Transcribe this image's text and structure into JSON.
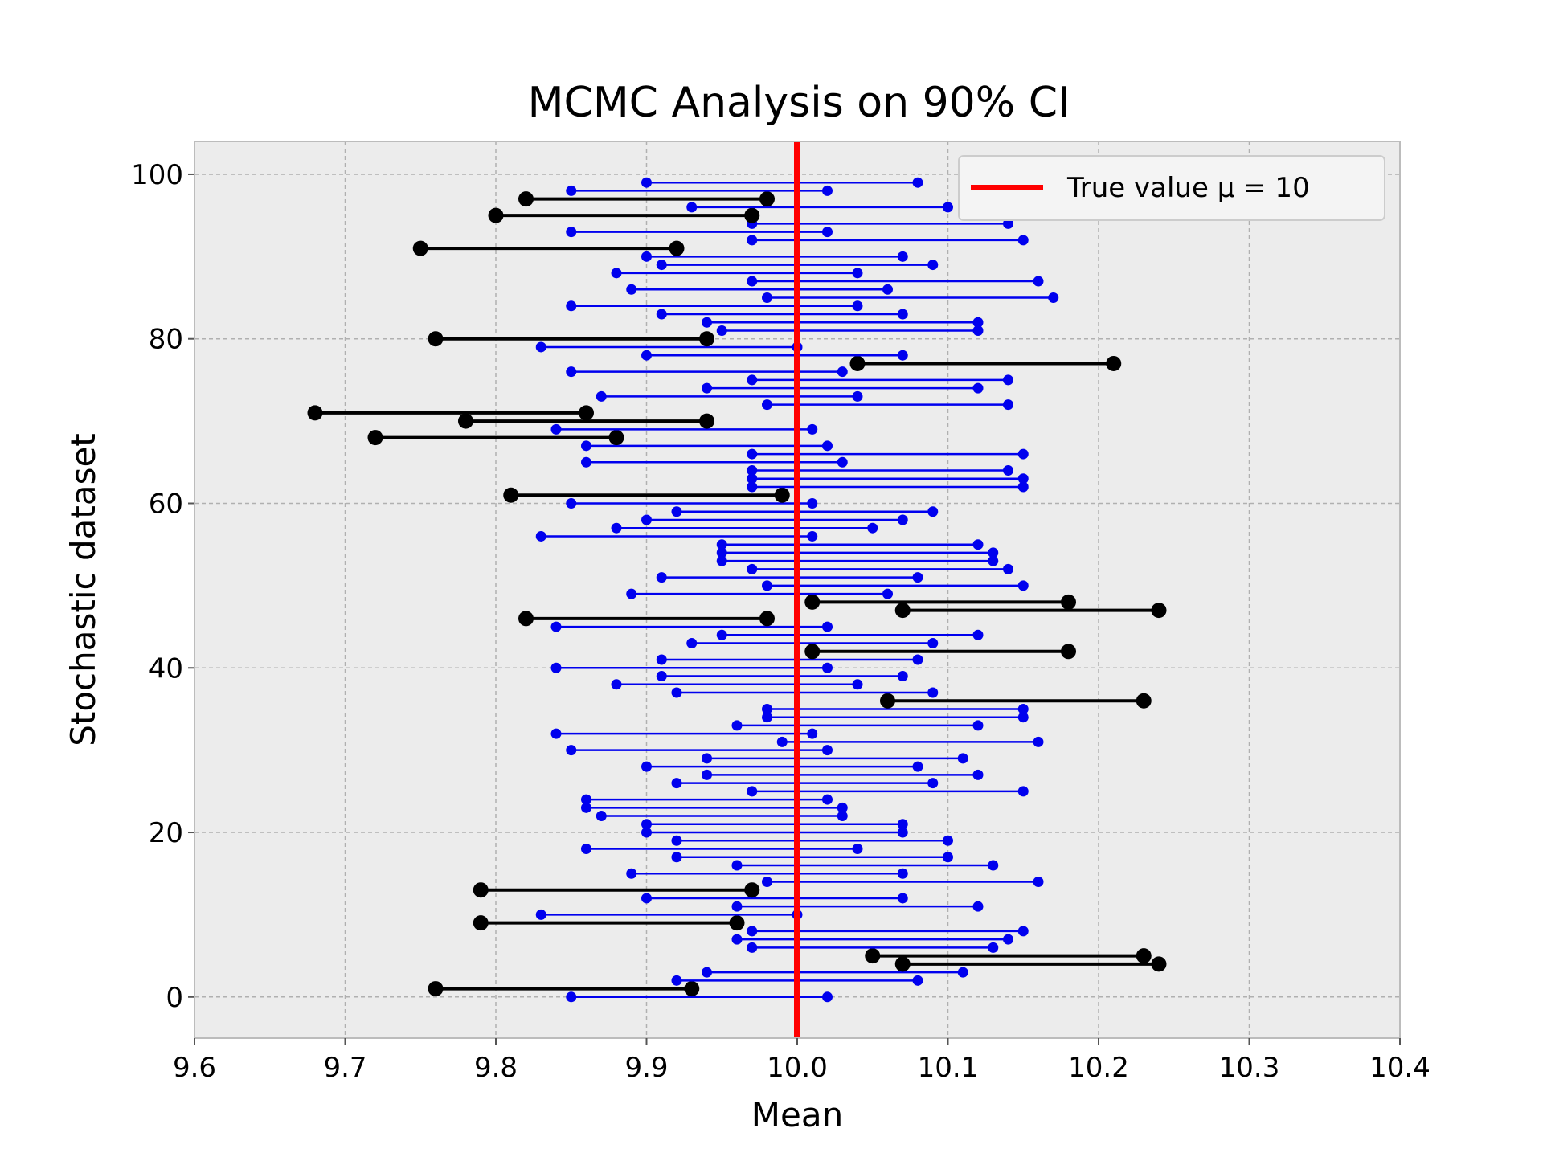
{
  "chart_data": {
    "type": "interval",
    "title": "MCMC Analysis on 90% CI",
    "xlabel": "Mean",
    "ylabel": "Stochastic dataset",
    "xlim": [
      9.6,
      10.4
    ],
    "ylim": [
      -5,
      104
    ],
    "xticks": [
      9.6,
      9.7,
      9.8,
      9.9,
      10.0,
      10.1,
      10.2,
      10.3,
      10.4
    ],
    "xtick_labels": [
      "9.6",
      "9.7",
      "9.8",
      "9.9",
      "10.0",
      "10.1",
      "10.2",
      "10.3",
      "10.4"
    ],
    "yticks": [
      0,
      20,
      40,
      60,
      80,
      100
    ],
    "ytick_labels": [
      "0",
      "20",
      "40",
      "60",
      "80",
      "100"
    ],
    "grid": true,
    "legend": {
      "placement": "top-right",
      "label": "True value μ = 10"
    },
    "true_value": 10.0,
    "colors": {
      "contains_true": "#0000ee",
      "misses_true": "#000000",
      "true_line": "#ff0000",
      "plot_bg": "#ececec",
      "grid": "#b0b0b0",
      "spine": "#bcbcbc"
    },
    "intervals": [
      [
        9.85,
        10.02
      ],
      [
        9.76,
        9.93
      ],
      [
        9.92,
        10.08
      ],
      [
        9.94,
        10.11
      ],
      [
        10.07,
        10.24
      ],
      [
        10.05,
        10.23
      ],
      [
        9.97,
        10.13
      ],
      [
        9.96,
        10.14
      ],
      [
        9.97,
        10.15
      ],
      [
        9.79,
        9.96
      ],
      [
        9.83,
        10.0
      ],
      [
        9.96,
        10.12
      ],
      [
        9.9,
        10.07
      ],
      [
        9.79,
        9.97
      ],
      [
        9.98,
        10.16
      ],
      [
        9.89,
        10.07
      ],
      [
        9.96,
        10.13
      ],
      [
        9.92,
        10.1
      ],
      [
        9.86,
        10.04
      ],
      [
        9.92,
        10.1
      ],
      [
        9.9,
        10.07
      ],
      [
        9.9,
        10.07
      ],
      [
        9.87,
        10.03
      ],
      [
        9.86,
        10.03
      ],
      [
        9.86,
        10.02
      ],
      [
        9.97,
        10.15
      ],
      [
        9.92,
        10.09
      ],
      [
        9.94,
        10.12
      ],
      [
        9.9,
        10.08
      ],
      [
        9.94,
        10.11
      ],
      [
        9.85,
        10.02
      ],
      [
        9.99,
        10.16
      ],
      [
        9.84,
        10.01
      ],
      [
        9.96,
        10.12
      ],
      [
        9.98,
        10.15
      ],
      [
        9.98,
        10.15
      ],
      [
        10.06,
        10.23
      ],
      [
        9.92,
        10.09
      ],
      [
        9.88,
        10.04
      ],
      [
        9.91,
        10.07
      ],
      [
        9.84,
        10.02
      ],
      [
        9.91,
        10.08
      ],
      [
        10.01,
        10.18
      ],
      [
        9.93,
        10.09
      ],
      [
        9.95,
        10.12
      ],
      [
        9.84,
        10.02
      ],
      [
        9.82,
        9.98
      ],
      [
        10.07,
        10.24
      ],
      [
        10.01,
        10.18
      ],
      [
        9.89,
        10.06
      ],
      [
        9.98,
        10.15
      ],
      [
        9.91,
        10.08
      ],
      [
        9.97,
        10.14
      ],
      [
        9.95,
        10.13
      ],
      [
        9.95,
        10.13
      ],
      [
        9.95,
        10.12
      ],
      [
        9.83,
        10.01
      ],
      [
        9.88,
        10.05
      ],
      [
        9.9,
        10.07
      ],
      [
        9.92,
        10.09
      ],
      [
        9.85,
        10.01
      ],
      [
        9.81,
        9.99
      ],
      [
        9.97,
        10.15
      ],
      [
        9.97,
        10.15
      ],
      [
        9.97,
        10.14
      ],
      [
        9.86,
        10.03
      ],
      [
        9.97,
        10.15
      ],
      [
        9.86,
        10.02
      ],
      [
        9.72,
        9.88
      ],
      [
        9.84,
        10.01
      ],
      [
        9.78,
        9.94
      ],
      [
        9.68,
        9.86
      ],
      [
        9.98,
        10.14
      ],
      [
        9.87,
        10.04
      ],
      [
        9.94,
        10.12
      ],
      [
        9.97,
        10.14
      ],
      [
        9.85,
        10.03
      ],
      [
        10.04,
        10.21
      ],
      [
        9.9,
        10.07
      ],
      [
        9.83,
        10.0
      ],
      [
        9.76,
        9.94
      ],
      [
        9.95,
        10.12
      ],
      [
        9.94,
        10.12
      ],
      [
        9.91,
        10.07
      ],
      [
        9.85,
        10.04
      ],
      [
        9.98,
        10.17
      ],
      [
        9.89,
        10.06
      ],
      [
        9.97,
        10.16
      ],
      [
        9.88,
        10.04
      ],
      [
        9.91,
        10.09
      ],
      [
        9.9,
        10.07
      ],
      [
        9.75,
        9.92
      ],
      [
        9.97,
        10.15
      ],
      [
        9.85,
        10.02
      ],
      [
        9.97,
        10.14
      ],
      [
        9.8,
        9.97
      ],
      [
        9.93,
        10.1
      ],
      [
        9.82,
        9.98
      ],
      [
        9.85,
        10.02
      ],
      [
        9.9,
        10.08
      ]
    ]
  }
}
